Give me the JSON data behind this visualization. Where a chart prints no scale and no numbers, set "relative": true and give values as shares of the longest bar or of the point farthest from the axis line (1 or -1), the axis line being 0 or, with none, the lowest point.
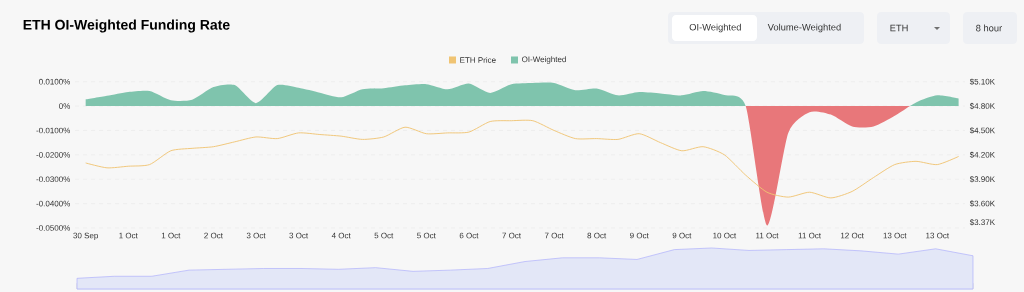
{
  "chart_data": [
    {
      "type": "line",
      "title": "ETH OI-Weighted Funding Rate",
      "annotations": [
        "OI-Weighted",
        "Volume-Weighted",
        "ETH",
        "8 hour"
      ],
      "categories": [
        "30 Sep",
        null,
        "1 Oct",
        null,
        "1 Oct",
        null,
        "2 Oct",
        null,
        "3 Oct",
        null,
        "3 Oct",
        null,
        "4 Oct",
        null,
        "5 Oct",
        null,
        "5 Oct",
        null,
        "6 Oct",
        null,
        "7 Oct",
        null,
        "7 Oct",
        null,
        "8 Oct",
        null,
        "9 Oct",
        null,
        "9 Oct",
        null,
        "10 Oct",
        null,
        "11 Oct",
        null,
        "11 Oct",
        null,
        "12 Oct",
        null,
        "13 Oct",
        null,
        "13 Oct",
        null
      ],
      "ylim": [
        -0.05,
        0.01
      ],
      "yticks": [
        {
          "value": 0.01,
          "label": "0.0100%"
        },
        {
          "value": 0,
          "label": "0%"
        },
        {
          "value": -0.01,
          "label": "-0.0100%"
        },
        {
          "value": -0.02,
          "label": "-0.0200%"
        },
        {
          "value": -0.03,
          "label": "-0.0300%"
        },
        {
          "value": -0.04,
          "label": "-0.0400%"
        },
        {
          "value": -0.05,
          "label": "-0.0500%"
        }
      ],
      "y2lim": [
        3.3,
        5.1
      ],
      "y2ticks": [
        {
          "value": 5.1,
          "label": "$5.10K"
        },
        {
          "value": 4.8,
          "label": "$4.80K"
        },
        {
          "value": 4.5,
          "label": "$4.50K"
        },
        {
          "value": 4.2,
          "label": "$4.20K"
        },
        {
          "value": 3.9,
          "label": "$3.90K"
        },
        {
          "value": 3.6,
          "label": "$3.60K"
        },
        {
          "value": 3.37,
          "label": "$3.37K"
        }
      ],
      "grid": "y",
      "legend": "top",
      "series": [
        {
          "name": "ETH Price",
          "type": "line",
          "axis": "y2",
          "color": "#f0c473",
          "values": [
            4.1,
            4.04,
            4.06,
            4.08,
            4.25,
            4.28,
            4.3,
            4.36,
            4.42,
            4.4,
            4.47,
            4.45,
            4.43,
            4.39,
            4.42,
            4.54,
            4.46,
            4.47,
            4.48,
            4.61,
            4.62,
            4.62,
            4.5,
            4.4,
            4.4,
            4.39,
            4.46,
            4.35,
            4.25,
            4.3,
            4.2,
            3.95,
            3.74,
            3.68,
            3.74,
            3.67,
            3.75,
            3.92,
            4.08,
            4.12,
            4.08,
            4.18
          ]
        },
        {
          "name": "OI-Weighted",
          "type": "area",
          "color": "#7fc4ad",
          "values": [
            0.0027,
            0.0042,
            0.0058,
            0.0062,
            0.0024,
            0.0026,
            0.0078,
            0.0086,
            0.0012,
            0.0086,
            0.0075,
            0.0055,
            0.0036,
            0.0069,
            0.0073,
            0.0085,
            0.009,
            0.0069,
            0.0093,
            0.0054,
            0.009,
            0.0095,
            0.0095,
            0.0065,
            0.0072,
            0.0044,
            0.0058,
            0.0052,
            0.0044,
            0.0062,
            0.0045,
            0,
            -0.049,
            -0.011,
            -0.0025,
            -0.0035,
            -0.0084,
            -0.0084,
            -0.004,
            0.0015,
            0.0044,
            0.0031
          ],
          "colors": [
            "#7fc4ad",
            "#7fc4ad",
            "#7fc4ad",
            "#7fc4ad",
            "#7fc4ad",
            "#7fc4ad",
            "#7fc4ad",
            "#7fc4ad",
            "#7fc4ad",
            "#7fc4ad",
            "#7fc4ad",
            "#7fc4ad",
            "#7fc4ad",
            "#7fc4ad",
            "#7fc4ad",
            "#7fc4ad",
            "#7fc4ad",
            "#7fc4ad",
            "#7fc4ad",
            "#7fc4ad",
            "#7fc4ad",
            "#7fc4ad",
            "#7fc4ad",
            "#7fc4ad",
            "#7fc4ad",
            "#7fc4ad",
            "#7fc4ad",
            "#7fc4ad",
            "#7fc4ad",
            "#7fc4ad",
            "#7fc4ad",
            "#7fc4ad",
            "#e8777a",
            "#e8777a",
            "#e8777a",
            "#e8777a",
            "#e8777a",
            "#e8777a",
            "#e8777a",
            "#7fc4ad",
            "#7fc4ad",
            "#7fc4ad"
          ]
        }
      ]
    },
    {
      "type": "area",
      "relative": true,
      "categories": [
        null,
        null,
        null,
        null,
        null,
        null,
        null,
        null,
        null,
        null,
        null,
        null,
        null,
        null,
        null,
        null,
        null,
        null,
        null,
        null,
        null,
        null,
        null,
        null,
        null
      ],
      "series": [
        {
          "color": "#e3e7f7",
          "values": [
            0.26,
            0.31,
            0.31,
            0.46,
            0.48,
            0.5,
            0.5,
            0.48,
            0.52,
            0.43,
            0.46,
            0.5,
            0.67,
            0.76,
            0.76,
            0.72,
            0.96,
            1,
            0.94,
            0.96,
            0.98,
            0.93,
            0.85,
            0.98,
            0.81
          ]
        }
      ]
    }
  ]
}
